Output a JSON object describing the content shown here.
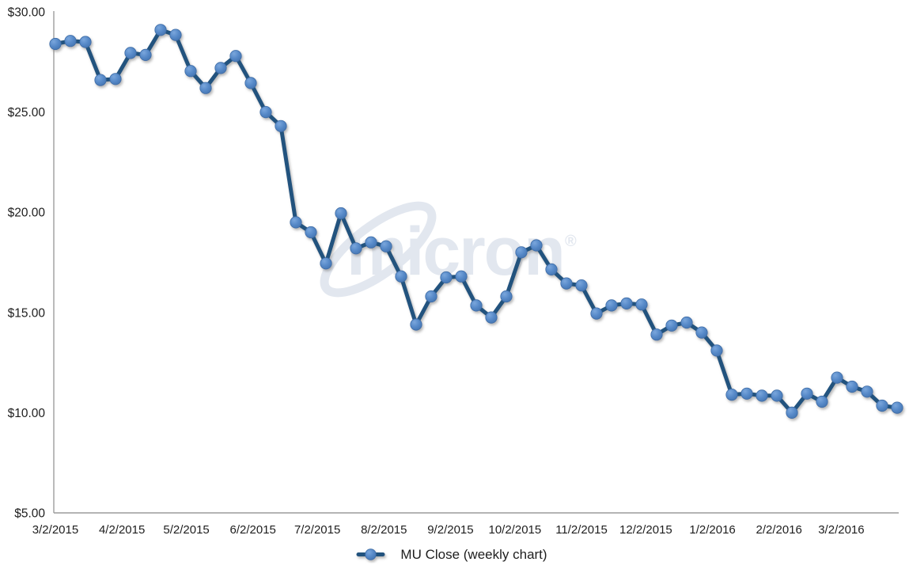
{
  "chart_data": {
    "type": "line",
    "title": "",
    "grid": false,
    "background_color": "#FFFFFF",
    "axis_line_color": "#9C9C9C",
    "text_color": "#1E1E1E",
    "legend_position": "bottom-center",
    "y_axis": {
      "format": "currency",
      "range": [
        5,
        30
      ],
      "ticks": [
        {
          "label": "$30.00",
          "value": 30
        },
        {
          "label": "$25.00",
          "value": 25
        },
        {
          "label": "$20.00",
          "value": 20
        },
        {
          "label": "$15.00",
          "value": 15
        },
        {
          "label": "$10.00",
          "value": 10
        },
        {
          "label": "$5.00",
          "value": 5
        }
      ]
    },
    "x_axis": {
      "start_date": "3/2/2015",
      "end_date": "3/28/2016",
      "labels": [
        {
          "label": "3/2/2015",
          "day_offset": 0
        },
        {
          "label": "4/2/2015",
          "day_offset": 31
        },
        {
          "label": "5/2/2015",
          "day_offset": 61
        },
        {
          "label": "6/2/2015",
          "day_offset": 92
        },
        {
          "label": "7/2/2015",
          "day_offset": 122
        },
        {
          "label": "8/2/2015",
          "day_offset": 153
        },
        {
          "label": "9/2/2015",
          "day_offset": 184
        },
        {
          "label": "10/2/2015",
          "day_offset": 214
        },
        {
          "label": "11/2/2015",
          "day_offset": 245
        },
        {
          "label": "12/2/2015",
          "day_offset": 275
        },
        {
          "label": "1/2/2016",
          "day_offset": 306
        },
        {
          "label": "2/2/2016",
          "day_offset": 337
        },
        {
          "label": "3/2/2016",
          "day_offset": 366
        }
      ]
    },
    "series": [
      {
        "name": "MU Close (weekly chart)",
        "type": "line",
        "interval": "weekly",
        "line_color": "#23527E",
        "marker_color": "#5588C7",
        "marker_edge_color": "#3E6CA6",
        "dates": [
          "3/2/2015",
          "3/9/2015",
          "3/16/2015",
          "3/23/2015",
          "3/30/2015",
          "4/6/2015",
          "4/13/2015",
          "4/20/2015",
          "4/27/2015",
          "5/4/2015",
          "5/11/2015",
          "5/18/2015",
          "5/25/2015",
          "6/1/2015",
          "6/8/2015",
          "6/15/2015",
          "6/22/2015",
          "6/29/2015",
          "7/6/2015",
          "7/13/2015",
          "7/20/2015",
          "7/27/2015",
          "8/3/2015",
          "8/10/2015",
          "8/17/2015",
          "8/24/2015",
          "8/31/2015",
          "9/7/2015",
          "9/14/2015",
          "9/21/2015",
          "9/28/2015",
          "10/5/2015",
          "10/12/2015",
          "10/19/2015",
          "10/26/2015",
          "11/2/2015",
          "11/9/2015",
          "11/16/2015",
          "11/23/2015",
          "11/30/2015",
          "12/7/2015",
          "12/14/2015",
          "12/21/2015",
          "12/28/2015",
          "1/4/2016",
          "1/11/2016",
          "1/18/2016",
          "1/25/2016",
          "2/1/2016",
          "2/8/2016",
          "2/15/2016",
          "2/22/2016",
          "2/29/2016",
          "3/7/2016",
          "3/14/2016",
          "3/21/2016",
          "3/28/2016"
        ],
        "values": [
          28.4,
          28.55,
          28.5,
          26.6,
          26.65,
          27.95,
          27.85,
          29.1,
          28.85,
          27.05,
          26.2,
          27.2,
          27.8,
          26.45,
          25.0,
          24.3,
          19.5,
          19.0,
          17.45,
          19.95,
          18.2,
          18.5,
          18.3,
          16.8,
          14.4,
          15.8,
          16.75,
          16.8,
          15.35,
          14.75,
          15.8,
          18.0,
          18.35,
          17.15,
          16.45,
          16.35,
          14.95,
          15.35,
          15.45,
          15.4,
          13.9,
          14.35,
          14.5,
          14.0,
          13.1,
          10.9,
          10.95,
          10.85,
          10.85,
          10.0,
          10.95,
          10.55,
          11.75,
          11.3,
          11.05,
          10.35,
          10.25
        ]
      }
    ],
    "watermark": {
      "text": "micron",
      "registered_mark": "®",
      "color": "#E2E7EF"
    }
  }
}
